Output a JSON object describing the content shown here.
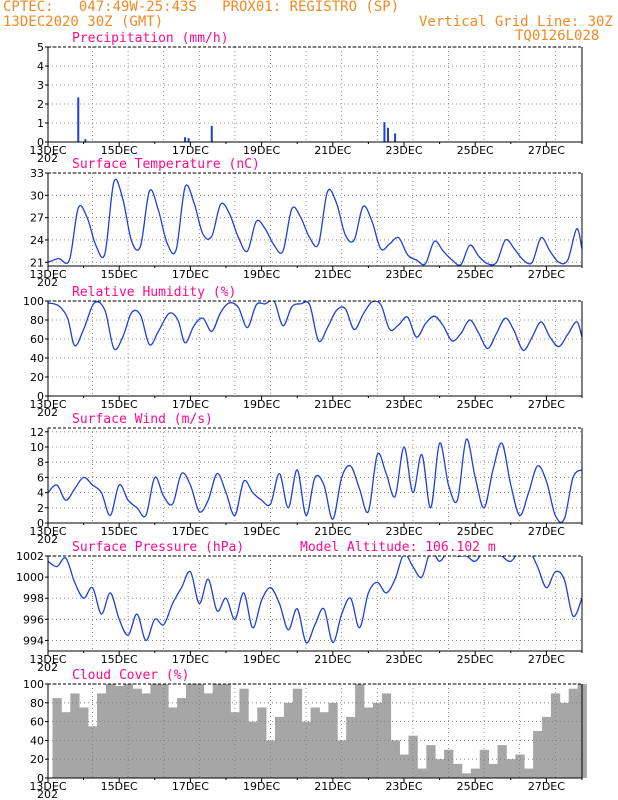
{
  "header": {
    "line1": "CPTEC:   047:49W-25:43S   PROX01: REGISTRO (SP)",
    "line2": "13DEC2020 30Z (GMT)",
    "grid_note": "Vertical Grid Line: 30Z",
    "code": "TQ0126L028"
  },
  "colors": {
    "header": "#f08a24",
    "title": "#ff0a8c",
    "series": "#1f3fd9",
    "cloud": "#a6a6a6",
    "grid": "#777777"
  },
  "x_axis": {
    "start_day": 13,
    "end_day": 28,
    "tick_labels": [
      "13DEC",
      "15DEC",
      "17DEC",
      "19DEC",
      "21DEC",
      "23DEC",
      "25DEC",
      "27DEC"
    ],
    "year_stub": "202"
  },
  "chart_data": [
    {
      "type": "bar",
      "title": "Precipitation (mm/h)",
      "ylim": [
        0,
        5
      ],
      "yticks": [
        0,
        1,
        2,
        3,
        4,
        5
      ],
      "x": [
        13.85,
        14.05,
        16.85,
        16.95,
        17.6,
        22.45,
        22.55,
        22.75
      ],
      "values": [
        2.35,
        0.15,
        0.25,
        0.2,
        0.85,
        1.05,
        0.75,
        0.45
      ]
    },
    {
      "type": "line",
      "title": "Surface Temperature (nC)",
      "ylim": [
        20.5,
        33
      ],
      "yticks": [
        21,
        24,
        27,
        30,
        33
      ],
      "x": [
        13.0,
        13.3,
        13.6,
        13.85,
        14.1,
        14.35,
        14.6,
        14.85,
        15.1,
        15.35,
        15.6,
        15.85,
        16.1,
        16.35,
        16.6,
        16.85,
        17.1,
        17.35,
        17.6,
        17.85,
        18.1,
        18.35,
        18.6,
        18.85,
        19.1,
        19.35,
        19.6,
        19.85,
        20.1,
        20.35,
        20.6,
        20.85,
        21.1,
        21.35,
        21.6,
        21.85,
        22.1,
        22.35,
        22.6,
        22.85,
        23.1,
        23.35,
        23.6,
        23.85,
        24.1,
        24.35,
        24.6,
        24.85,
        25.1,
        25.35,
        25.6,
        25.85,
        26.1,
        26.35,
        26.6,
        26.85,
        27.1,
        27.35,
        27.6,
        27.85,
        28.0
      ],
      "values": [
        21,
        21.5,
        21.3,
        28.3,
        27,
        23.2,
        22.2,
        31.8,
        29.5,
        23.8,
        23.2,
        30.6,
        28,
        23.5,
        22.7,
        31.1,
        29,
        24.8,
        24.5,
        28.8,
        27.5,
        24.3,
        22.5,
        26.5,
        25.5,
        23.3,
        22.5,
        28.2,
        27,
        24.3,
        23.5,
        30.5,
        29,
        24.7,
        24,
        28.5,
        26.5,
        22.8,
        23.5,
        24.3,
        22,
        21.3,
        20.8,
        23.8,
        22.5,
        21.3,
        20.7,
        23.3,
        21.8,
        20.8,
        21,
        24.0,
        22.8,
        21.3,
        21,
        24.3,
        22.5,
        21,
        21.3,
        25.5,
        22.8
      ]
    },
    {
      "type": "line",
      "title": "Relative Humidity (%)",
      "ylim": [
        0,
        100
      ],
      "yticks": [
        0,
        20,
        40,
        60,
        80,
        100
      ],
      "x": [
        13.0,
        13.3,
        13.55,
        13.75,
        14.0,
        14.3,
        14.6,
        14.85,
        15.1,
        15.35,
        15.6,
        15.85,
        16.1,
        16.4,
        16.65,
        16.85,
        17.1,
        17.35,
        17.6,
        17.85,
        18.1,
        18.35,
        18.6,
        18.85,
        19.1,
        19.35,
        19.6,
        19.85,
        20.1,
        20.35,
        20.6,
        20.85,
        21.1,
        21.35,
        21.6,
        21.85,
        22.1,
        22.35,
        22.6,
        22.85,
        23.1,
        23.35,
        23.6,
        23.85,
        24.1,
        24.35,
        24.6,
        24.85,
        25.1,
        25.35,
        25.6,
        25.85,
        26.1,
        26.35,
        26.6,
        26.85,
        27.1,
        27.35,
        27.6,
        27.85,
        28.0
      ],
      "values": [
        98,
        95,
        82,
        53,
        70,
        98,
        90,
        50,
        62,
        88,
        85,
        54,
        68,
        87,
        80,
        56,
        74,
        82,
        68,
        88,
        98,
        93,
        72,
        96,
        97,
        100,
        74,
        94,
        97,
        96,
        58,
        72,
        90,
        92,
        70,
        86,
        99,
        96,
        70,
        75,
        83,
        62,
        76,
        84,
        74,
        58,
        66,
        80,
        66,
        50,
        66,
        82,
        68,
        48,
        62,
        78,
        62,
        52,
        65,
        78,
        62
      ]
    },
    {
      "type": "line",
      "title": "Surface Wind (m/s)",
      "ylim": [
        0,
        12.5
      ],
      "yticks": [
        0,
        2,
        4,
        6,
        8,
        10,
        12
      ],
      "x": [
        13.0,
        13.25,
        13.5,
        13.75,
        14.0,
        14.25,
        14.5,
        14.75,
        15.0,
        15.25,
        15.5,
        15.75,
        16.0,
        16.25,
        16.5,
        16.75,
        17.0,
        17.25,
        17.5,
        17.75,
        18.0,
        18.25,
        18.5,
        18.75,
        19.0,
        19.25,
        19.5,
        19.75,
        20.0,
        20.25,
        20.5,
        20.75,
        21.0,
        21.25,
        21.5,
        21.75,
        22.0,
        22.25,
        22.5,
        22.75,
        23.0,
        23.25,
        23.5,
        23.75,
        24.0,
        24.25,
        24.5,
        24.75,
        25.0,
        25.25,
        25.5,
        25.75,
        26.0,
        26.25,
        26.5,
        26.75,
        27.0,
        27.25,
        27.5,
        27.75,
        28.0
      ],
      "values": [
        4,
        5,
        3,
        4.5,
        6,
        5,
        4,
        1,
        5,
        3,
        2,
        1,
        6,
        3.5,
        2.5,
        6.5,
        5,
        1.5,
        3,
        6.5,
        4,
        1,
        5.5,
        4,
        3,
        2.5,
        6.5,
        2,
        7,
        1,
        6,
        5,
        0.5,
        6,
        7.5,
        4.5,
        1.5,
        9,
        6.5,
        3.5,
        10,
        4,
        9,
        2,
        10.5,
        5,
        3,
        11,
        6,
        2,
        7,
        10.5,
        5,
        1,
        4,
        7.5,
        5.5,
        1,
        0.5,
        6,
        7
      ]
    },
    {
      "type": "line",
      "title": "Surface Pressure (hPa)",
      "annotation": "Model Altitude: 106.102  m",
      "ylim": [
        993,
        1002
      ],
      "yticks": [
        994,
        996,
        998,
        1000,
        1002
      ],
      "x": [
        13.0,
        13.25,
        13.5,
        13.75,
        14.0,
        14.25,
        14.5,
        14.75,
        15.0,
        15.25,
        15.5,
        15.75,
        16.0,
        16.25,
        16.5,
        16.75,
        17.0,
        17.25,
        17.5,
        17.75,
        18.0,
        18.25,
        18.5,
        18.75,
        19.0,
        19.25,
        19.5,
        19.75,
        20.0,
        20.25,
        20.5,
        20.75,
        21.0,
        21.25,
        21.5,
        21.75,
        22.0,
        22.25,
        22.5,
        22.75,
        23.0,
        23.25,
        23.5,
        23.75,
        24.0,
        24.25,
        24.5,
        24.75,
        25.0,
        25.25,
        25.5,
        25.75,
        26.0,
        26.25,
        26.5,
        26.75,
        27.0,
        27.25,
        27.5,
        27.75,
        28.0
      ],
      "values": [
        1001.5,
        1001,
        1001.8,
        999.5,
        998,
        999,
        996.5,
        998.5,
        996,
        994.5,
        996.5,
        994,
        996,
        995.5,
        997.5,
        999,
        1000.5,
        997.5,
        999.8,
        996.8,
        998,
        996,
        998.5,
        995.2,
        997.8,
        999,
        997.5,
        995,
        997,
        993.8,
        995.5,
        997,
        993.8,
        996.5,
        998,
        995.2,
        998.5,
        999.5,
        998.5,
        999.8,
        1002.2,
        1001,
        1000,
        1002.5,
        1001.5,
        1002.5,
        1002,
        1002,
        1001.5,
        1002.5,
        1002.8,
        1002,
        1001.5,
        1002.5,
        1002.6,
        1001,
        999,
        1000.5,
        999.8,
        996.3,
        998
      ]
    },
    {
      "type": "bar",
      "title": "Cloud Cover (%)",
      "ylim": [
        0,
        100
      ],
      "yticks": [
        0,
        20,
        40,
        60,
        80,
        100
      ],
      "x": [
        13.0,
        13.25,
        13.5,
        13.75,
        14.0,
        14.25,
        14.5,
        14.75,
        15.0,
        15.25,
        15.5,
        15.75,
        16.0,
        16.25,
        16.5,
        16.75,
        17.0,
        17.25,
        17.5,
        17.75,
        18.0,
        18.25,
        18.5,
        18.75,
        19.0,
        19.25,
        19.5,
        19.75,
        20.0,
        20.25,
        20.5,
        20.75,
        21.0,
        21.25,
        21.5,
        21.75,
        22.0,
        22.25,
        22.5,
        22.75,
        23.0,
        23.25,
        23.5,
        23.75,
        24.0,
        24.25,
        24.5,
        24.75,
        25.0,
        25.25,
        25.5,
        25.75,
        26.0,
        26.25,
        26.5,
        26.75,
        27.0,
        27.25,
        27.5,
        27.75,
        28.0
      ],
      "values": [
        0,
        85,
        70,
        90,
        75,
        55,
        90,
        100,
        98,
        100,
        95,
        90,
        100,
        100,
        75,
        85,
        100,
        100,
        90,
        100,
        100,
        70,
        95,
        60,
        75,
        40,
        65,
        80,
        95,
        60,
        75,
        70,
        80,
        40,
        65,
        100,
        75,
        80,
        90,
        40,
        25,
        45,
        10,
        35,
        20,
        30,
        15,
        5,
        10,
        30,
        15,
        35,
        20,
        25,
        10,
        50,
        65,
        90,
        80,
        95,
        100
      ]
    }
  ]
}
